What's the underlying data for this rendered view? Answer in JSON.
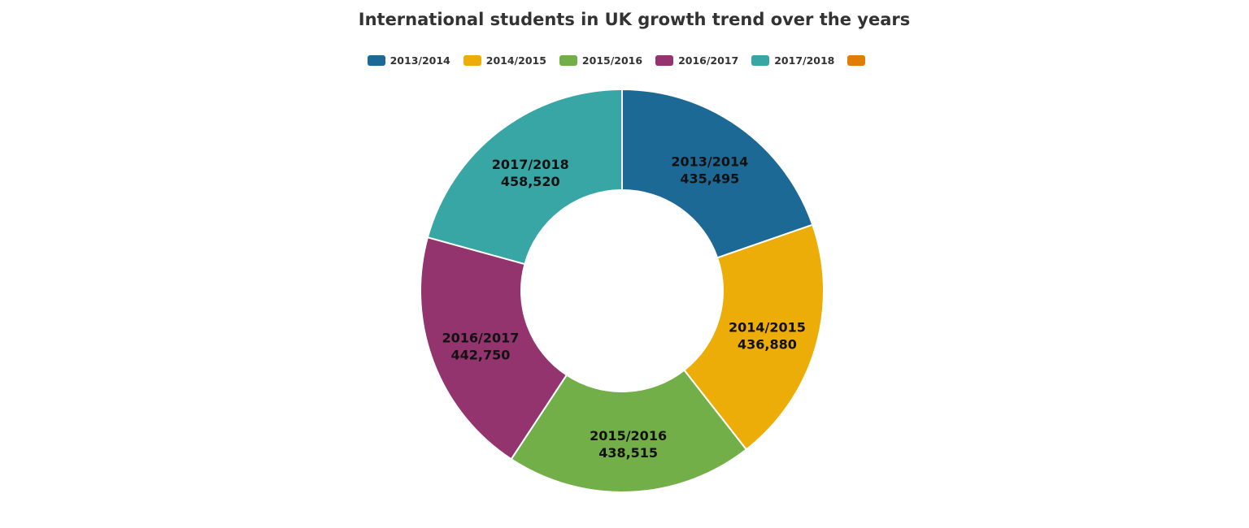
{
  "chart_data": {
    "type": "donut",
    "title": "International students in UK growth trend over the years",
    "categories": [
      "2013/2014",
      "2014/2015",
      "2015/2016",
      "2016/2017",
      "2017/2018",
      null
    ],
    "values": [
      435495,
      436880,
      438515,
      442750,
      458520,
      null
    ],
    "value_labels": [
      "435,495",
      "436,880",
      "438,515",
      "442,750",
      "458,520",
      null
    ],
    "colors": [
      "#1d6996",
      "#edad08",
      "#73af48",
      "#94346e",
      "#38a6a5",
      "#e17c05"
    ]
  }
}
